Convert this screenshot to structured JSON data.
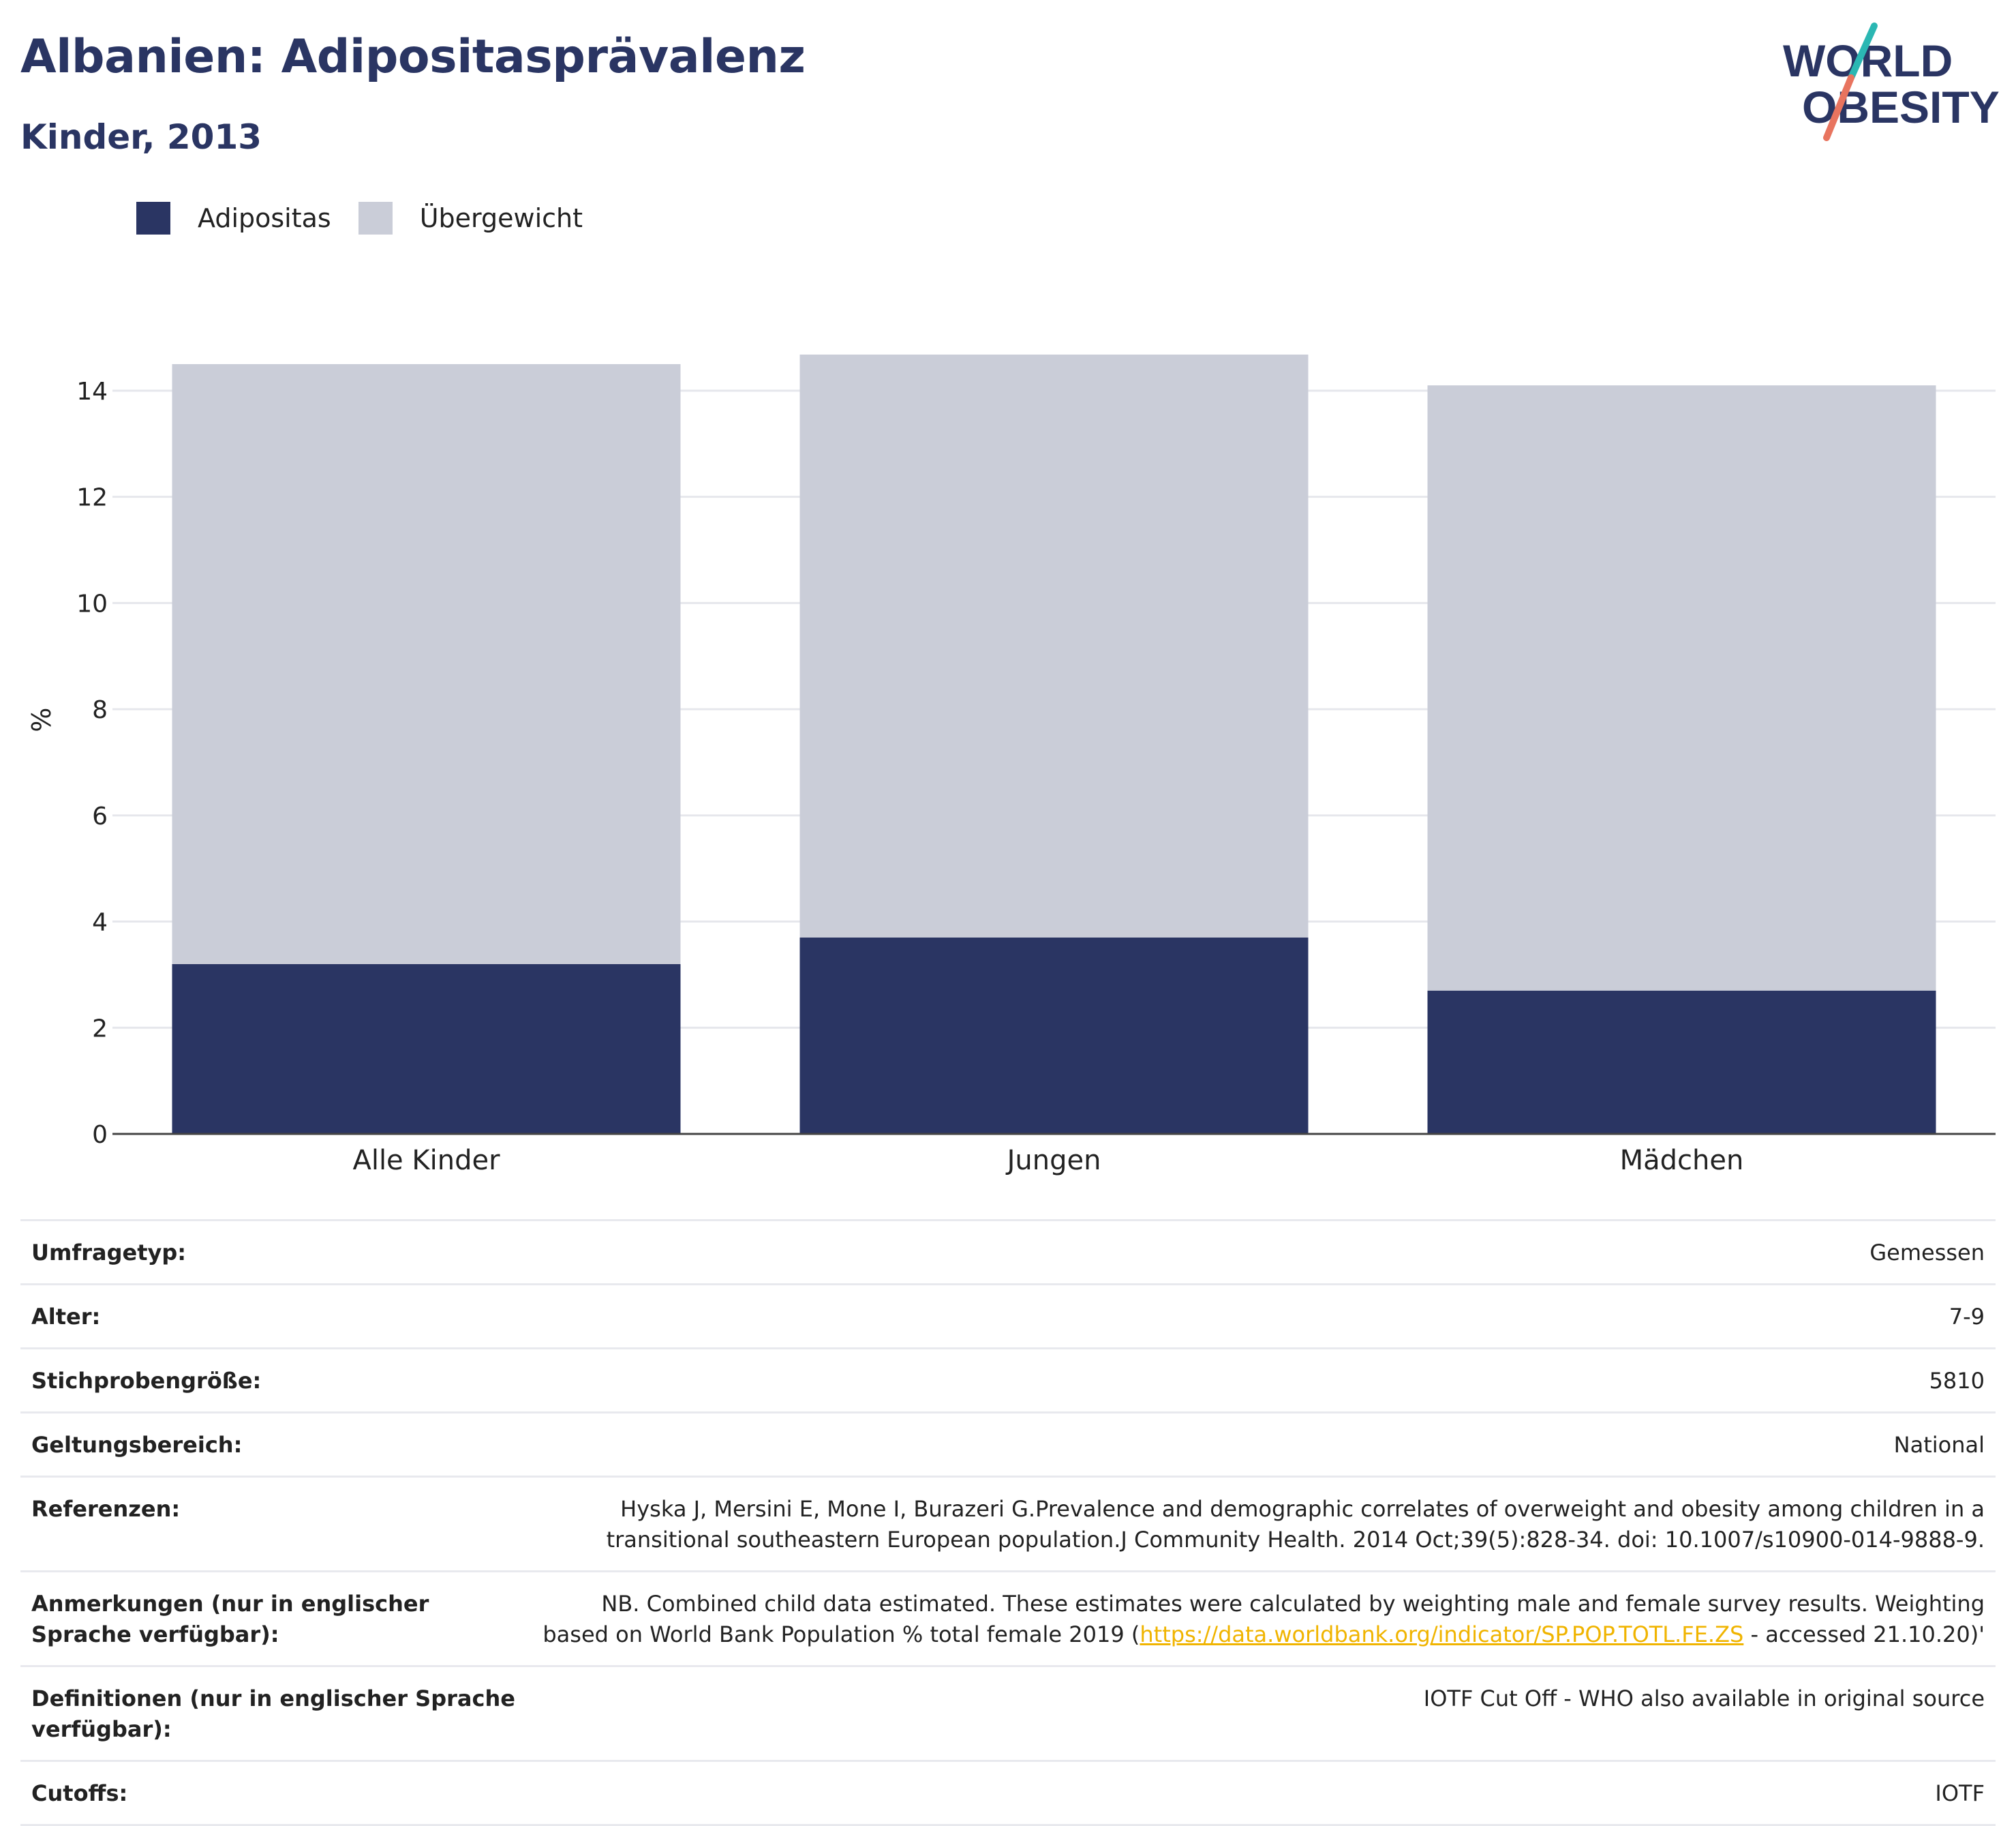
{
  "header": {
    "title": "Albanien: Adipositasprävalenz",
    "subtitle": "Kinder, 2013"
  },
  "logo": {
    "line1": "WORLD",
    "line2": "OBESITY"
  },
  "colors": {
    "adipositas": "#2a3563",
    "uebergewicht": "#cacdd8",
    "accent_teal": "#2bb7b3",
    "accent_coral": "#e8745f",
    "link": "#f0b400"
  },
  "chart_data": {
    "type": "bar",
    "stacked": true,
    "categories": [
      "Alle Kinder",
      "Jungen",
      "Mädchen"
    ],
    "series": [
      {
        "name": "Adipositas",
        "values": [
          3.2,
          3.7,
          2.7
        ]
      },
      {
        "name": "Übergewicht",
        "values": [
          11.3,
          11.3,
          11.4
        ]
      }
    ],
    "totals": [
      14.5,
      15.0,
      14.1
    ],
    "ylabel": "%",
    "ylim": [
      0,
      15
    ],
    "yticks": [
      "0",
      "2",
      "4",
      "6",
      "8",
      "10",
      "12",
      "14"
    ],
    "grid": true,
    "legend": "top-left"
  },
  "info": {
    "survey_type": {
      "label": "Umfragetyp:",
      "value": "Gemessen"
    },
    "age": {
      "label": "Alter:",
      "value": "7-9"
    },
    "sample_size": {
      "label": "Stichprobengröße:",
      "value": "5810"
    },
    "scope": {
      "label": "Geltungsbereich:",
      "value": "National"
    },
    "references": {
      "label": "Referenzen:",
      "value": "Hyska J, Mersini E, Mone I, Burazeri G.Prevalence and demographic correlates of overweight and obesity among children in a transitional southeastern European population.J Community Health. 2014 Oct;39(5):828-34. doi: 10.1007/s10900-014-9888-9."
    },
    "notes": {
      "label": "Anmerkungen (nur in englischer Sprache verfügbar):",
      "value_before": "NB. Combined child data estimated. These estimates were calculated by weighting male and female survey results. Weighting based on World Bank Population % total female 2019 (",
      "link": "https://data.worldbank.org/indicator/SP.POP.TOTL.FE.ZS",
      "value_after": " - accessed 21.10.20)'"
    },
    "definitions": {
      "label": "Definitionen (nur in englischer Sprache verfügbar):",
      "value": "IOTF Cut Off - WHO also available in original source"
    },
    "cutoffs": {
      "label": "Cutoffs:",
      "value": "IOTF"
    }
  }
}
